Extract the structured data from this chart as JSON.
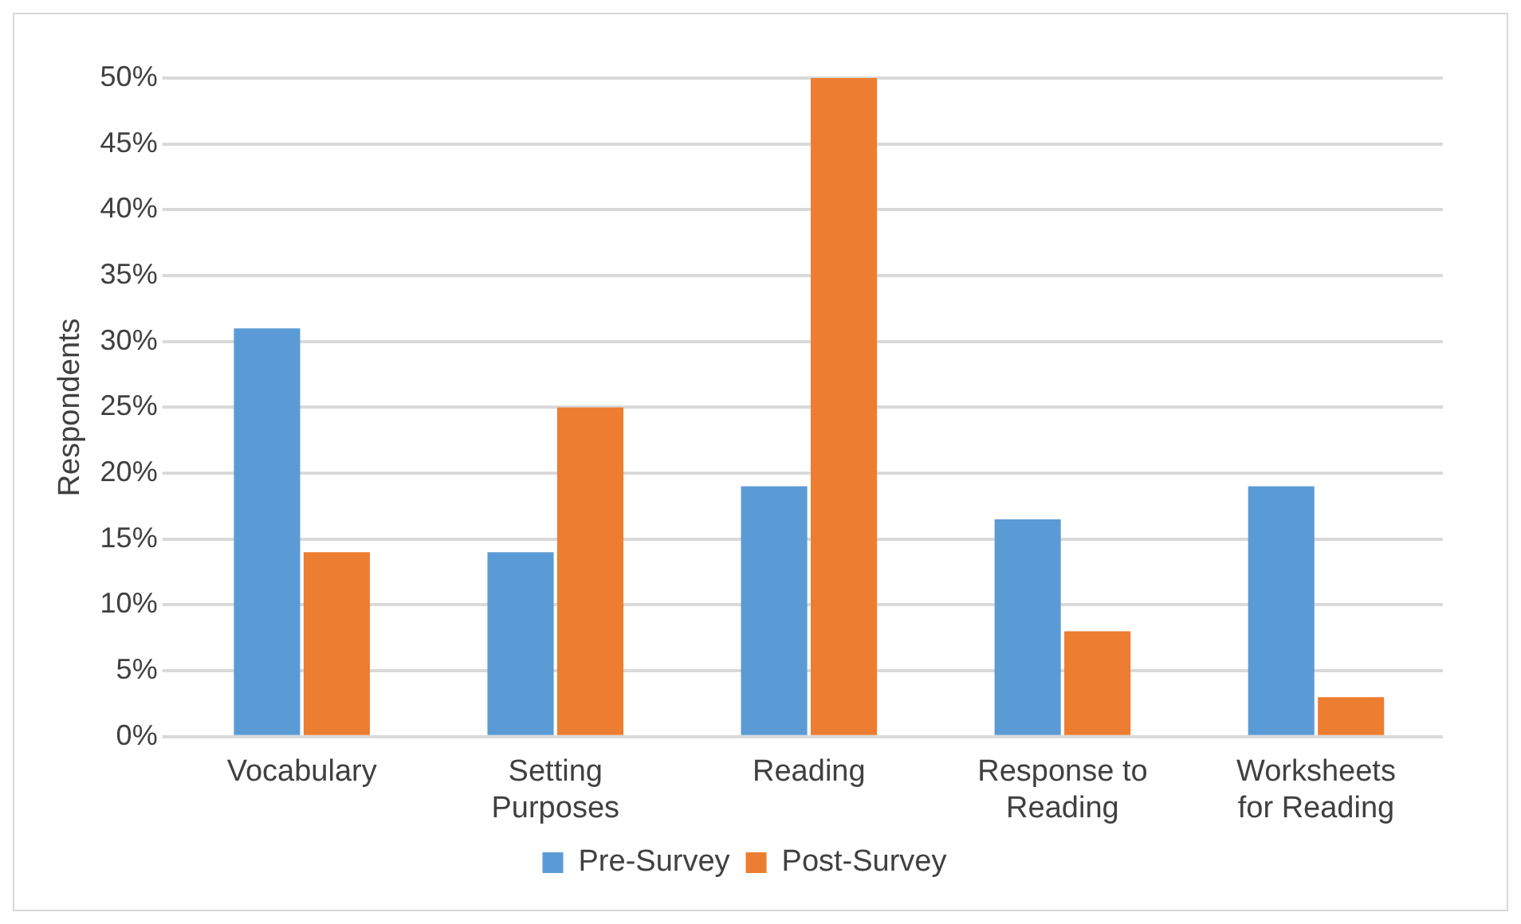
{
  "chart_data": {
    "type": "bar",
    "ylabel": "Respondents",
    "categories": [
      "Vocabulary",
      "Setting Purposes",
      "Reading",
      "Response to Reading",
      "Worksheets for Reading"
    ],
    "series": [
      {
        "name": "Pre-Survey",
        "color": "#5b9bd5",
        "values": [
          31,
          14,
          19,
          16.5,
          19
        ]
      },
      {
        "name": "Post-Survey",
        "color": "#ed7d31",
        "values": [
          14,
          25,
          50,
          8,
          3
        ]
      }
    ],
    "ylim": [
      0,
      50
    ],
    "yticks": [
      {
        "value": 0,
        "label": "0%"
      },
      {
        "value": 5,
        "label": "5%"
      },
      {
        "value": 10,
        "label": "10%"
      },
      {
        "value": 15,
        "label": "15%"
      },
      {
        "value": 20,
        "label": "20%"
      },
      {
        "value": 25,
        "label": "25%"
      },
      {
        "value": 30,
        "label": "30%"
      },
      {
        "value": 35,
        "label": "35%"
      },
      {
        "value": 40,
        "label": "40%"
      },
      {
        "value": 45,
        "label": "45%"
      },
      {
        "value": 50,
        "label": "50%"
      }
    ],
    "grid": "y",
    "legend": "bottom"
  }
}
